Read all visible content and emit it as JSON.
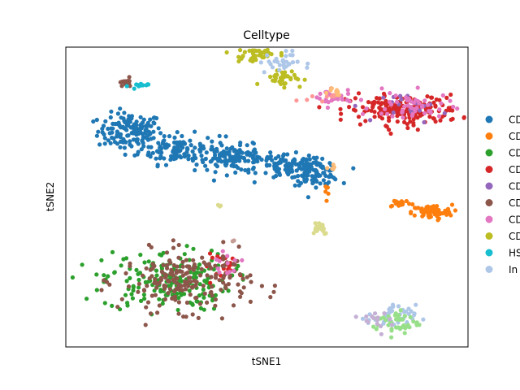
{
  "chart_data": {
    "type": "scatter",
    "title": "Celltype",
    "xlabel": "tSNE1",
    "ylabel": "tSNE2",
    "xlim": [
      0,
      100
    ],
    "ylim": [
      0,
      100
    ],
    "grid": false,
    "legend_placement": "right (clipped)",
    "series": [
      {
        "name": "CD",
        "color": "#1f77b4",
        "clusters": [
          {
            "cx": 16,
            "cy": 72,
            "sx": 4,
            "sy": 3,
            "n": 140
          },
          {
            "cx": 28,
            "cy": 66,
            "sx": 5,
            "sy": 2.5,
            "n": 120
          },
          {
            "cx": 42,
            "cy": 63,
            "sx": 5,
            "sy": 2.2,
            "n": 120
          },
          {
            "cx": 56,
            "cy": 60,
            "sx": 4,
            "sy": 2,
            "n": 90
          },
          {
            "cx": 62,
            "cy": 58,
            "sx": 3,
            "sy": 2,
            "n": 90
          }
        ]
      },
      {
        "name": "CD",
        "color": "#ff7f0e",
        "clusters": [
          {
            "cx": 91,
            "cy": 45,
            "sx": 2.5,
            "sy": 1.2,
            "n": 80
          },
          {
            "cx": 83,
            "cy": 48,
            "sx": 1.5,
            "sy": 0.7,
            "n": 18
          },
          {
            "cx": 65,
            "cy": 53,
            "sx": 0.8,
            "sy": 1.5,
            "n": 6
          }
        ]
      },
      {
        "name": "CD",
        "color": "#2ca02c",
        "clusters": [
          {
            "cx": 25,
            "cy": 22,
            "sx": 8,
            "sy": 5,
            "n": 190
          }
        ]
      },
      {
        "name": "CD",
        "color": "#d62728",
        "clusters": [
          {
            "cx": 84,
            "cy": 79,
            "sx": 7,
            "sy": 2.5,
            "n": 190
          },
          {
            "cx": 40,
            "cy": 27,
            "sx": 3,
            "sy": 2,
            "n": 20
          }
        ]
      },
      {
        "name": "CD",
        "color": "#9467bd",
        "clusters": [
          {
            "cx": 87,
            "cy": 80,
            "sx": 4,
            "sy": 2.5,
            "n": 22
          }
        ]
      },
      {
        "name": "CD",
        "color": "#8c564b",
        "clusters": [
          {
            "cx": 30,
            "cy": 22,
            "sx": 8,
            "sy": 5,
            "n": 200
          },
          {
            "cx": 15,
            "cy": 88,
            "sx": 0.9,
            "sy": 0.7,
            "n": 18
          }
        ]
      },
      {
        "name": "CD",
        "color": "#e377c2",
        "clusters": [
          {
            "cx": 66,
            "cy": 83,
            "sx": 2.5,
            "sy": 1.5,
            "n": 25
          },
          {
            "cx": 86,
            "cy": 80,
            "sx": 5,
            "sy": 2.5,
            "n": 50
          },
          {
            "cx": 40,
            "cy": 28,
            "sx": 2,
            "sy": 1.5,
            "n": 12
          }
        ]
      },
      {
        "name": "CD",
        "color": "#bcbd22",
        "clusters": [
          {
            "cx": 47,
            "cy": 97,
            "sx": 3,
            "sy": 1.2,
            "n": 25
          },
          {
            "cx": 48,
            "cy": 100,
            "sx": 3,
            "sy": 1.5,
            "n": 35
          },
          {
            "cx": 54,
            "cy": 90,
            "sx": 2.5,
            "sy": 1.5,
            "n": 35
          }
        ]
      },
      {
        "name": "HS",
        "color": "#17becf",
        "clusters": [
          {
            "cx": 18,
            "cy": 87,
            "sx": 1.2,
            "sy": 0.5,
            "n": 14
          }
        ]
      },
      {
        "name": "In",
        "color": "#aec7e8",
        "clusters": [
          {
            "cx": 53,
            "cy": 95,
            "sx": 2.5,
            "sy": 1.8,
            "n": 30
          },
          {
            "cx": 81,
            "cy": 10,
            "sx": 3,
            "sy": 2,
            "n": 40
          }
        ]
      },
      {
        "name": "",
        "color": "#ff9896",
        "clusters": [
          {
            "cx": 45,
            "cy": 105,
            "sx": 3,
            "sy": 1.5,
            "n": 60
          },
          {
            "cx": 64,
            "cy": 84,
            "sx": 2,
            "sy": 1.2,
            "n": 10
          }
        ]
      },
      {
        "name": "",
        "color": "#98df8a",
        "clusters": [
          {
            "cx": 82,
            "cy": 8,
            "sx": 3,
            "sy": 2,
            "n": 45
          }
        ]
      },
      {
        "name": "",
        "color": "#c5b0d5",
        "clusters": [
          {
            "cx": 80,
            "cy": 9,
            "sx": 3,
            "sy": 2,
            "n": 15
          }
        ]
      },
      {
        "name": "",
        "color": "#ffbb78",
        "clusters": [
          {
            "cx": 66,
            "cy": 85,
            "sx": 1.5,
            "sy": 1,
            "n": 8
          },
          {
            "cx": 66,
            "cy": 60,
            "sx": 1,
            "sy": 1,
            "n": 5
          }
        ]
      },
      {
        "name": "",
        "color": "#dbdb8d",
        "clusters": [
          {
            "cx": 63,
            "cy": 40,
            "sx": 1.2,
            "sy": 1.2,
            "n": 25
          },
          {
            "cx": 38,
            "cy": 47,
            "sx": 0.3,
            "sy": 0.5,
            "n": 3
          }
        ]
      },
      {
        "name": "",
        "color": "#c49c94",
        "clusters": [
          {
            "cx": 42,
            "cy": 35,
            "sx": 0.3,
            "sy": 0.3,
            "n": 2
          }
        ]
      }
    ]
  }
}
